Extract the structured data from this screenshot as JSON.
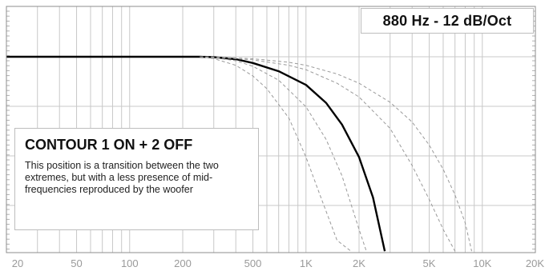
{
  "chart_data": {
    "type": "line",
    "title": "880 Hz - 12 dB/Oct",
    "x_scale": "log",
    "xlim": [
      20,
      20000
    ],
    "x_tick_labels": [
      "20",
      "50",
      "100",
      "200",
      "500",
      "1K",
      "2K",
      "5K",
      "10K",
      "20K"
    ],
    "x_tick_values": [
      20,
      50,
      100,
      200,
      500,
      1000,
      2000,
      5000,
      10000,
      20000
    ],
    "grid": true,
    "series": [
      {
        "style": "solid",
        "color": "#000000",
        "x": [
          20,
          100,
          200,
          250,
          300,
          400,
          500,
          700,
          1000,
          1300,
          1600,
          2000,
          2400,
          2800
        ],
        "y": [
          0.0,
          0.0,
          0.0,
          0.0,
          -0.06,
          -0.37,
          -0.97,
          -2.26,
          -4.4,
          -7.2,
          -10.6,
          -15.7,
          -22.0,
          -30.4
        ]
      },
      {
        "style": "dashed",
        "color": "#999999",
        "x": [
          250,
          300,
          400,
          500,
          600,
          800,
          1000,
          1200,
          1500,
          1800
        ],
        "y": [
          0.0,
          -0.29,
          -1.34,
          -3.0,
          -5.0,
          -9.6,
          -15.7,
          -21.6,
          -28.7,
          -30.4
        ]
      },
      {
        "style": "dashed",
        "color": "#999999",
        "x": [
          250,
          300,
          400,
          500,
          700,
          1000,
          1300,
          1600,
          2000,
          2200
        ],
        "y": [
          0.0,
          -0.14,
          -0.63,
          -1.49,
          -3.66,
          -7.83,
          -12.9,
          -18.6,
          -27.0,
          -30.4
        ]
      },
      {
        "style": "dashed",
        "color": "#999999",
        "x": [
          250,
          300,
          500,
          800,
          1000,
          1500,
          2000,
          3000,
          4000,
          5000,
          6000,
          7000,
          8000,
          8700
        ],
        "y": [
          0.0,
          -0.03,
          -0.31,
          -0.86,
          -1.34,
          -2.69,
          -4.14,
          -7.11,
          -10.2,
          -13.8,
          -17.6,
          -21.6,
          -26.0,
          -30.4
        ]
      },
      {
        "style": "dashed",
        "color": "#999999",
        "x": [
          250,
          300,
          500,
          800,
          1000,
          1500,
          2000,
          3000,
          4000,
          5000,
          6000,
          7000
        ],
        "y": [
          0.0,
          -0.06,
          -0.49,
          -1.34,
          -2.03,
          -4.14,
          -6.29,
          -11.2,
          -17.0,
          -22.3,
          -27.0,
          -30.4
        ]
      }
    ]
  },
  "info": {
    "heading": "CONTOUR 1 ON + 2 OFF",
    "text": "This position is a transition between the two extremes, but with a less presence of mid-frequencies reproduced by the woofer"
  }
}
